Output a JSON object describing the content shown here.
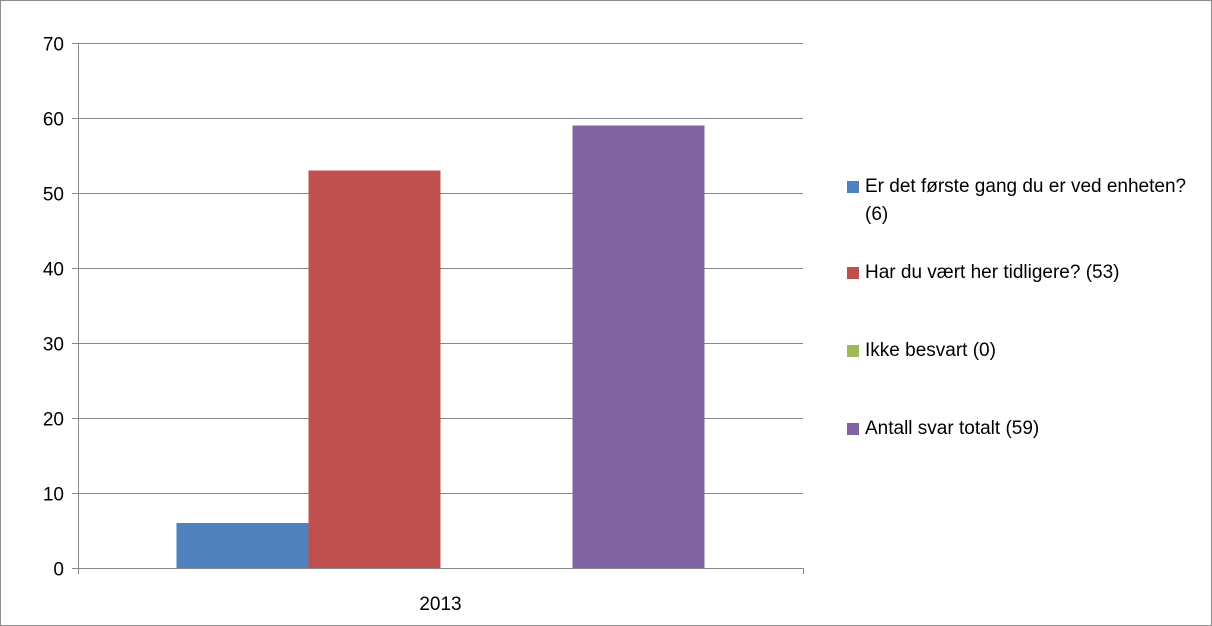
{
  "chart_data": {
    "type": "bar",
    "categories": [
      "2013"
    ],
    "series": [
      {
        "name": "Er det første gang du er ved enheten? (6)",
        "values": [
          6
        ],
        "color": "#4f81bd"
      },
      {
        "name": "Har du vært her tidligere? (53)",
        "values": [
          53
        ],
        "color": "#c0504d"
      },
      {
        "name": "Ikke besvart (0)",
        "values": [
          0
        ],
        "color": "#9bbb59"
      },
      {
        "name": "Antall svar totalt  (59)",
        "values": [
          59
        ],
        "color": "#8064a2"
      }
    ],
    "y_ticks": [
      "0",
      "10",
      "20",
      "30",
      "40",
      "50",
      "60",
      "70"
    ],
    "ylim": [
      0,
      70
    ],
    "grid": true,
    "legend_position": "right"
  }
}
